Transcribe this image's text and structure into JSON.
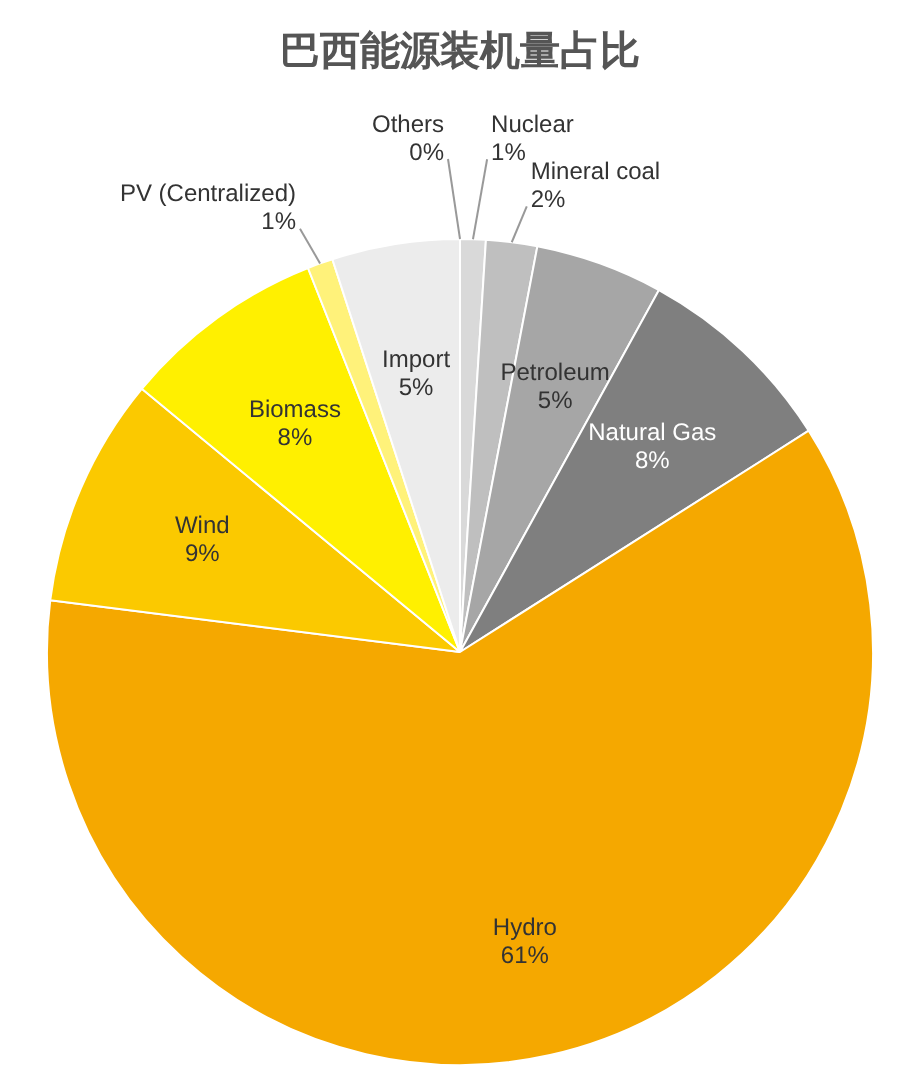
{
  "chart_data": {
    "type": "pie",
    "title": "巴西能源装机量占比",
    "categories": [
      "Nuclear",
      "Mineral coal",
      "Petroleum",
      "Natural Gas",
      "Hydro",
      "Wind",
      "Biomass",
      "PV (Centralized)",
      "Import",
      "Others"
    ],
    "values": [
      1,
      2,
      5,
      8,
      61,
      9,
      8,
      1,
      5,
      0
    ],
    "value_labels": [
      "1%",
      "2%",
      "5%",
      "8%",
      "61%",
      "9%",
      "8%",
      "1%",
      "5%",
      "0%"
    ],
    "colors": [
      "#d9d9d9",
      "#bfbfbf",
      "#a6a6a6",
      "#7f7f7f",
      "#f5a800",
      "#fbc900",
      "#fff000",
      "#fff27a",
      "#ececec",
      "#f5f5f5"
    ],
    "legend": false
  }
}
